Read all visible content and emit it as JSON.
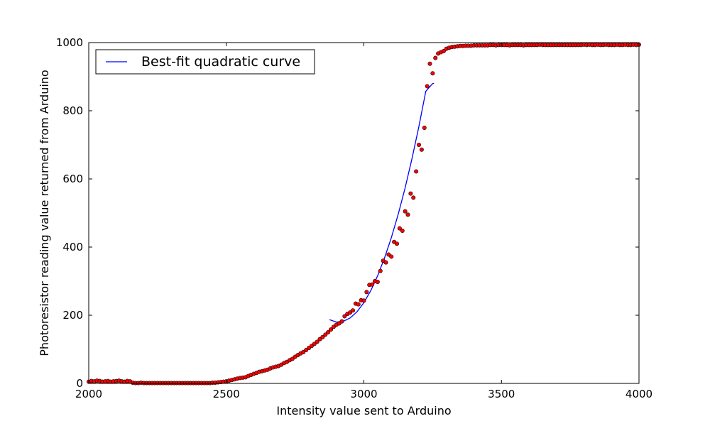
{
  "chart_data": {
    "type": "scatter",
    "title": "",
    "xlabel": "Intensity value sent to Arduino",
    "ylabel": "Photoresistor reading value returned from Arduino",
    "xlim": [
      2000,
      4000
    ],
    "ylim": [
      0,
      1000
    ],
    "xticks": [
      2000,
      2500,
      3000,
      3500,
      4000
    ],
    "yticks": [
      0,
      200,
      400,
      600,
      800,
      1000
    ],
    "xtick_labels": [
      "2000",
      "2500",
      "3000",
      "3500",
      "4000"
    ],
    "ytick_labels": [
      "0",
      "200",
      "400",
      "600",
      "800",
      "1000"
    ],
    "grid": false,
    "legend_position": "top-left",
    "series": [
      {
        "kind": "line",
        "name": "Best-fit quadratic curve",
        "color": "#0000ff",
        "x": [
          2875,
          2900,
          2925,
          2950,
          2975,
          3000,
          3025,
          3050,
          3075,
          3100,
          3125,
          3150,
          3175,
          3200,
          3225,
          3250,
          3255
        ],
        "y": [
          187,
          180,
          182,
          192,
          210,
          237,
          272,
          316,
          368,
          428,
          497,
          574,
          660,
          754,
          857,
          880,
          880
        ]
      },
      {
        "kind": "scatter",
        "color": "#ff0000",
        "x": [
          2000,
          2010,
          2020,
          2030,
          2040,
          2050,
          2060,
          2070,
          2080,
          2090,
          2100,
          2110,
          2120,
          2130,
          2140,
          2150,
          2160,
          2170,
          2180,
          2190,
          2200,
          2210,
          2220,
          2230,
          2240,
          2250,
          2260,
          2270,
          2280,
          2290,
          2300,
          2310,
          2320,
          2330,
          2340,
          2350,
          2360,
          2370,
          2380,
          2390,
          2400,
          2410,
          2420,
          2430,
          2440,
          2450,
          2460,
          2470,
          2480,
          2490,
          2500,
          2510,
          2520,
          2530,
          2540,
          2550,
          2560,
          2570,
          2580,
          2590,
          2600,
          2610,
          2620,
          2630,
          2640,
          2650,
          2660,
          2670,
          2680,
          2690,
          2700,
          2710,
          2720,
          2730,
          2740,
          2750,
          2760,
          2770,
          2780,
          2790,
          2800,
          2810,
          2820,
          2830,
          2840,
          2850,
          2860,
          2870,
          2880,
          2890,
          2900,
          2910,
          2920,
          2930,
          2940,
          2950,
          2960,
          2970,
          2980,
          2990,
          3000,
          3010,
          3020,
          3030,
          3040,
          3050,
          3060,
          3070,
          3080,
          3090,
          3100,
          3110,
          3120,
          3130,
          3140,
          3150,
          3160,
          3170,
          3180,
          3190,
          3200,
          3210,
          3220,
          3230,
          3240,
          3250,
          3260,
          3270,
          3280,
          3290,
          3300,
          3310,
          3320,
          3330,
          3340,
          3350,
          3360,
          3370,
          3380,
          3390,
          3400,
          3410,
          3420,
          3430,
          3440,
          3450,
          3460,
          3470,
          3480,
          3490,
          3500,
          3510,
          3520,
          3530,
          3540,
          3550,
          3560,
          3570,
          3580,
          3590,
          3600,
          3610,
          3620,
          3630,
          3640,
          3650,
          3660,
          3670,
          3680,
          3690,
          3700,
          3710,
          3720,
          3730,
          3740,
          3750,
          3760,
          3770,
          3780,
          3790,
          3800,
          3810,
          3820,
          3830,
          3840,
          3850,
          3860,
          3870,
          3880,
          3890,
          3900,
          3910,
          3920,
          3930,
          3940,
          3950,
          3960,
          3970,
          3980,
          3990,
          4000
        ],
        "y": [
          5,
          7,
          6,
          8,
          7,
          5,
          6,
          7,
          5,
          6,
          7,
          8,
          6,
          5,
          7,
          6,
          2,
          1,
          1,
          2,
          1,
          1,
          1,
          1,
          1,
          1,
          1,
          1,
          1,
          1,
          1,
          1,
          1,
          1,
          1,
          1,
          1,
          1,
          1,
          1,
          1,
          1,
          1,
          1,
          1,
          2,
          2,
          3,
          4,
          5,
          6,
          8,
          10,
          12,
          14,
          16,
          17,
          18,
          22,
          25,
          28,
          31,
          34,
          36,
          38,
          40,
          44,
          47,
          49,
          51,
          55,
          60,
          63,
          68,
          72,
          78,
          83,
          88,
          92,
          98,
          104,
          110,
          116,
          122,
          130,
          136,
          143,
          150,
          158,
          166,
          172,
          176,
          182,
          197,
          204,
          208,
          214,
          234,
          232,
          244,
          243,
          268,
          289,
          290,
          300,
          298,
          330,
          360,
          355,
          378,
          372,
          415,
          410,
          455,
          448,
          505,
          495,
          557,
          545,
          622,
          700,
          686,
          750,
          872,
          938,
          910,
          955,
          968,
          972,
          975,
          982,
          985,
          987,
          988,
          989,
          990,
          990,
          991,
          991,
          991,
          992,
          992,
          992,
          992,
          992,
          992,
          993,
          993,
          992,
          993,
          993,
          993,
          993,
          992,
          993,
          993,
          993,
          993,
          992,
          993,
          993,
          993,
          993,
          993,
          994,
          993,
          993,
          993,
          993,
          993,
          993,
          993,
          993,
          993,
          993,
          993,
          993,
          993,
          993,
          993,
          994,
          993,
          994,
          993,
          993,
          994,
          993,
          993,
          994,
          993,
          993,
          993,
          994,
          993,
          993,
          994,
          993,
          993,
          994,
          993,
          994
        ]
      }
    ]
  }
}
